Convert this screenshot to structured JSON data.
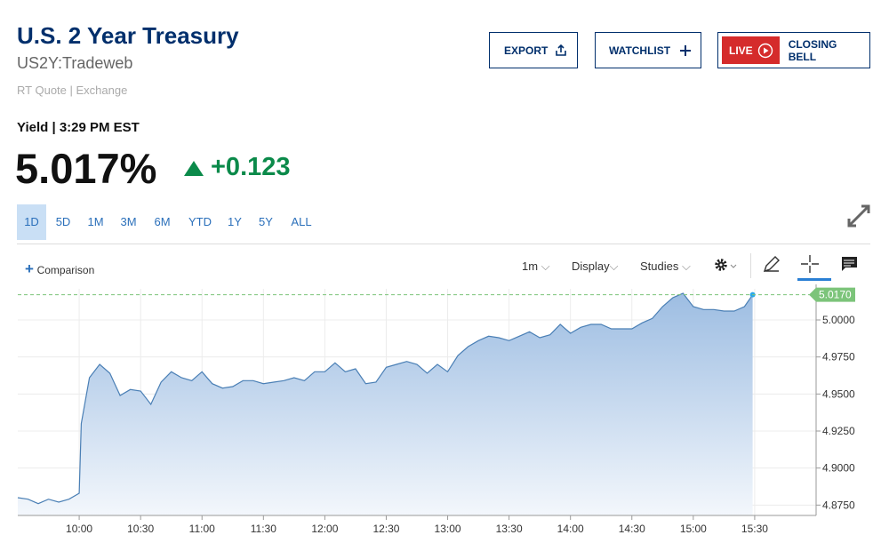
{
  "header": {
    "title": "U.S. 2 Year Treasury",
    "symbol": "US2Y:Tradeweb",
    "source": "RT Quote | Exchange"
  },
  "buttons": {
    "export": "EXPORT",
    "watchlist": "WATCHLIST",
    "live": "LIVE",
    "closing_bell": "CLOSING BELL"
  },
  "quote": {
    "label": "Yield | 3:29 PM EST",
    "value": "5.017%",
    "change": "+0.123"
  },
  "ranges": {
    "items": [
      "1D",
      "5D",
      "1M",
      "3M",
      "6M",
      "YTD",
      "1Y",
      "5Y",
      "ALL"
    ],
    "active": 0
  },
  "toolbar": {
    "comparison": "Comparison",
    "interval": "1m",
    "display": "Display",
    "studies": "Studies"
  },
  "chart_data": {
    "type": "area",
    "x": [
      "9:30",
      "9:35",
      "9:40",
      "9:45",
      "9:50",
      "9:55",
      "10:00",
      "10:01",
      "10:05",
      "10:10",
      "10:15",
      "10:20",
      "10:25",
      "10:30",
      "10:35",
      "10:40",
      "10:45",
      "10:50",
      "10:55",
      "11:00",
      "11:05",
      "11:10",
      "11:15",
      "11:20",
      "11:25",
      "11:30",
      "11:35",
      "11:40",
      "11:45",
      "11:50",
      "11:55",
      "12:00",
      "12:05",
      "12:10",
      "12:15",
      "12:20",
      "12:25",
      "12:30",
      "12:35",
      "12:40",
      "12:45",
      "12:50",
      "12:55",
      "13:00",
      "13:05",
      "13:10",
      "13:15",
      "13:20",
      "13:25",
      "13:30",
      "13:35",
      "13:40",
      "13:45",
      "13:50",
      "13:55",
      "14:00",
      "14:05",
      "14:10",
      "14:15",
      "14:20",
      "14:25",
      "14:30",
      "14:35",
      "14:40",
      "14:45",
      "14:50",
      "14:55",
      "15:00",
      "15:05",
      "15:10",
      "15:15",
      "15:20",
      "15:25",
      "15:29"
    ],
    "values": [
      4.88,
      4.879,
      4.876,
      4.879,
      4.877,
      4.879,
      4.883,
      4.93,
      4.961,
      4.97,
      4.964,
      4.949,
      4.953,
      4.952,
      4.943,
      4.958,
      4.965,
      4.961,
      4.959,
      4.965,
      4.957,
      4.954,
      4.955,
      4.959,
      4.959,
      4.957,
      4.958,
      4.959,
      4.961,
      4.959,
      4.965,
      4.965,
      4.971,
      4.965,
      4.967,
      4.957,
      4.958,
      4.968,
      4.97,
      4.972,
      4.97,
      4.964,
      4.97,
      4.965,
      4.976,
      4.982,
      4.986,
      4.989,
      4.988,
      4.986,
      4.989,
      4.992,
      4.988,
      4.99,
      4.997,
      4.991,
      4.995,
      4.997,
      4.997,
      4.994,
      4.994,
      4.994,
      4.998,
      5.001,
      5.009,
      5.015,
      5.018,
      5.009,
      5.007,
      5.007,
      5.006,
      5.006,
      5.009,
      5.017
    ],
    "color": "#4a7fb5",
    "xlim": [
      "9:30",
      "16:00"
    ],
    "xticks": [
      "10:00",
      "10:30",
      "11:00",
      "11:30",
      "12:00",
      "12:30",
      "13:00",
      "13:30",
      "14:00",
      "14:30",
      "15:00",
      "15:30"
    ],
    "ylim": [
      4.868,
      5.021
    ],
    "yticks": [
      {
        "value": 4.875,
        "label": "4.8750"
      },
      {
        "value": 4.9,
        "label": "4.9000"
      },
      {
        "value": 4.925,
        "label": "4.9250"
      },
      {
        "value": 4.95,
        "label": "4.9500"
      },
      {
        "value": 4.975,
        "label": "4.9750"
      },
      {
        "value": 5.0,
        "label": "5.0000"
      }
    ],
    "grid": true,
    "reference_line": {
      "value": 5.017,
      "label": "5.0170",
      "color": "#7cc47a"
    }
  }
}
